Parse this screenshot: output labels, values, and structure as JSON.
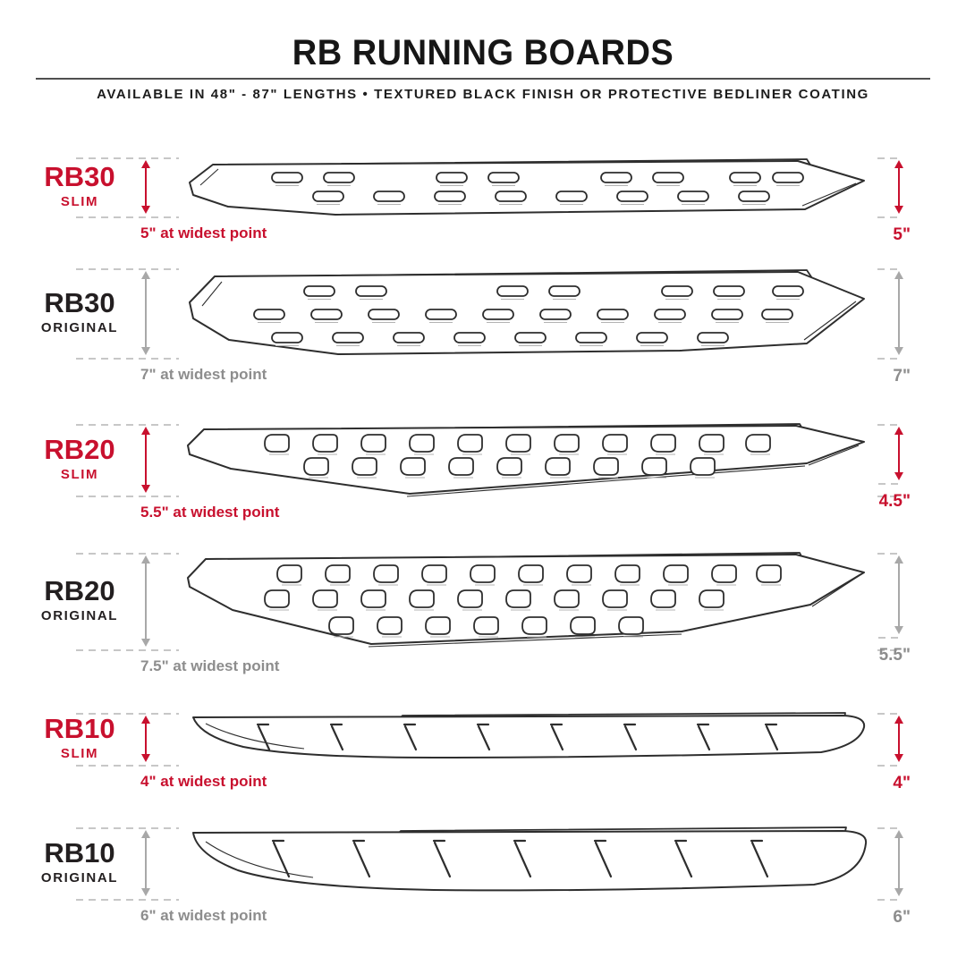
{
  "header": {
    "title": "RB RUNNING BOARDS",
    "subtitle": "AVAILABLE IN 48\" - 87\" LENGTHS  •  TEXTURED BLACK FINISH OR PROTECTIVE BEDLINER COATING"
  },
  "colors": {
    "accent_red": "#c8102e",
    "muted_gray": "#8d8d8d",
    "arrow_gray": "#a8a8a8",
    "line_art": "#2e2e2e",
    "dash_gray": "#c7c7c7"
  },
  "rows": [
    {
      "model": "RB30",
      "variant": "SLIM",
      "widest": "5\" at widest point",
      "right_dim": "5\"",
      "pattern": "oval-slots"
    },
    {
      "model": "RB30",
      "variant": "ORIGINAL",
      "widest": "7\" at widest point",
      "right_dim": "7\"",
      "pattern": "oval-slots"
    },
    {
      "model": "RB20",
      "variant": "SLIM",
      "widest": "5.5\" at widest point",
      "right_dim": "4.5\"",
      "pattern": "d-slots"
    },
    {
      "model": "RB20",
      "variant": "ORIGINAL",
      "widest": "7.5\" at widest point",
      "right_dim": "5.5\"",
      "pattern": "d-slots"
    },
    {
      "model": "RB10",
      "variant": "SLIM",
      "widest": "4\" at widest point",
      "right_dim": "4\"",
      "pattern": "slash-treads"
    },
    {
      "model": "RB10",
      "variant": "ORIGINAL",
      "widest": "6\" at widest point",
      "right_dim": "6\"",
      "pattern": "slash-treads"
    }
  ]
}
